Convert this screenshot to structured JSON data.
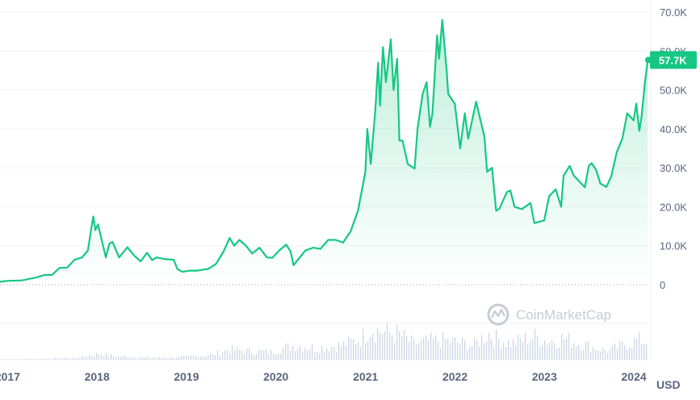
{
  "chart_data": {
    "type": "area",
    "currency": "USD",
    "watermark": "CoinMarketCap",
    "current_value_label": "57.7K",
    "current_value": 57700,
    "ylim": [
      0,
      70000
    ],
    "yticks": [
      0,
      10000,
      20000,
      30000,
      40000,
      50000,
      60000,
      70000
    ],
    "ytick_labels": [
      "0",
      "10.0K",
      "20.0K",
      "30.0K",
      "40.0K",
      "50.0K",
      "60.0K",
      "70.0K"
    ],
    "xlim": [
      "2016-12-01",
      "2024-02-29"
    ],
    "xtick_labels": [
      "2017",
      "2018",
      "2019",
      "2020",
      "2021",
      "2022",
      "2023",
      "2024"
    ],
    "xtick_dates": [
      "2017-01-01",
      "2018-01-01",
      "2019-01-01",
      "2020-01-01",
      "2021-01-01",
      "2022-01-01",
      "2023-01-01",
      "2024-01-01"
    ],
    "colors": {
      "line": "#16c784",
      "fill_top": "#16c784",
      "volume": "#cfd6e4",
      "badge": "#16c784",
      "grid": "#eff2f5",
      "text": "#58667e"
    },
    "price_series": [
      [
        "2016-12-01",
        750
      ],
      [
        "2017-01-01",
        970
      ],
      [
        "2017-03-01",
        1100
      ],
      [
        "2017-05-01",
        1900
      ],
      [
        "2017-06-01",
        2500
      ],
      [
        "2017-07-01",
        2500
      ],
      [
        "2017-08-01",
        4300
      ],
      [
        "2017-09-01",
        4400
      ],
      [
        "2017-10-01",
        6400
      ],
      [
        "2017-11-01",
        7000
      ],
      [
        "2017-11-25",
        8800
      ],
      [
        "2017-12-10",
        15000
      ],
      [
        "2017-12-17",
        17500
      ],
      [
        "2017-12-25",
        14000
      ],
      [
        "2018-01-05",
        15500
      ],
      [
        "2018-01-20",
        11500
      ],
      [
        "2018-02-06",
        7000
      ],
      [
        "2018-02-20",
        10500
      ],
      [
        "2018-03-05",
        11000
      ],
      [
        "2018-04-01",
        7000
      ],
      [
        "2018-05-05",
        9600
      ],
      [
        "2018-06-01",
        7500
      ],
      [
        "2018-06-28",
        6000
      ],
      [
        "2018-07-24",
        8200
      ],
      [
        "2018-08-14",
        6300
      ],
      [
        "2018-09-01",
        7000
      ],
      [
        "2018-10-01",
        6600
      ],
      [
        "2018-11-10",
        6400
      ],
      [
        "2018-11-25",
        4000
      ],
      [
        "2018-12-15",
        3300
      ],
      [
        "2019-01-15",
        3600
      ],
      [
        "2019-02-15",
        3600
      ],
      [
        "2019-04-01",
        4100
      ],
      [
        "2019-05-01",
        5300
      ],
      [
        "2019-06-01",
        8500
      ],
      [
        "2019-06-26",
        12000
      ],
      [
        "2019-07-15",
        10000
      ],
      [
        "2019-08-05",
        11500
      ],
      [
        "2019-09-01",
        10000
      ],
      [
        "2019-09-26",
        8000
      ],
      [
        "2019-10-26",
        9500
      ],
      [
        "2019-11-25",
        7000
      ],
      [
        "2019-12-17",
        6900
      ],
      [
        "2020-01-15",
        8800
      ],
      [
        "2020-02-12",
        10300
      ],
      [
        "2020-03-01",
        8500
      ],
      [
        "2020-03-13",
        5000
      ],
      [
        "2020-04-01",
        6500
      ],
      [
        "2020-05-01",
        8800
      ],
      [
        "2020-06-01",
        9500
      ],
      [
        "2020-07-01",
        9200
      ],
      [
        "2020-08-01",
        11500
      ],
      [
        "2020-09-01",
        11500
      ],
      [
        "2020-10-01",
        10800
      ],
      [
        "2020-11-01",
        13700
      ],
      [
        "2020-12-01",
        19000
      ],
      [
        "2020-12-31",
        29000
      ],
      [
        "2021-01-08",
        40000
      ],
      [
        "2021-01-22",
        31000
      ],
      [
        "2021-02-10",
        45000
      ],
      [
        "2021-02-21",
        57000
      ],
      [
        "2021-03-01",
        46000
      ],
      [
        "2021-03-13",
        61000
      ],
      [
        "2021-03-25",
        52000
      ],
      [
        "2021-04-14",
        63000
      ],
      [
        "2021-04-25",
        50000
      ],
      [
        "2021-05-10",
        58000
      ],
      [
        "2021-05-19",
        37000
      ],
      [
        "2021-06-01",
        37000
      ],
      [
        "2021-06-22",
        31000
      ],
      [
        "2021-07-20",
        29800
      ],
      [
        "2021-08-01",
        40000
      ],
      [
        "2021-08-22",
        49000
      ],
      [
        "2021-09-07",
        52000
      ],
      [
        "2021-09-21",
        40500
      ],
      [
        "2021-10-01",
        44000
      ],
      [
        "2021-10-20",
        64000
      ],
      [
        "2021-10-28",
        58000
      ],
      [
        "2021-11-10",
        68000
      ],
      [
        "2021-11-28",
        55000
      ],
      [
        "2021-12-04",
        49000
      ],
      [
        "2021-12-31",
        46500
      ],
      [
        "2022-01-22",
        35000
      ],
      [
        "2022-02-10",
        44000
      ],
      [
        "2022-02-24",
        37500
      ],
      [
        "2022-03-28",
        47000
      ],
      [
        "2022-05-01",
        38000
      ],
      [
        "2022-05-12",
        29000
      ],
      [
        "2022-06-01",
        30000
      ],
      [
        "2022-06-18",
        19000
      ],
      [
        "2022-07-01",
        19500
      ],
      [
        "2022-08-01",
        23800
      ],
      [
        "2022-08-15",
        24200
      ],
      [
        "2022-09-01",
        20000
      ],
      [
        "2022-10-01",
        19400
      ],
      [
        "2022-11-05",
        21000
      ],
      [
        "2022-11-21",
        15800
      ],
      [
        "2022-12-31",
        16500
      ],
      [
        "2023-01-20",
        22700
      ],
      [
        "2023-02-16",
        24500
      ],
      [
        "2023-03-10",
        20000
      ],
      [
        "2023-03-20",
        28000
      ],
      [
        "2023-04-14",
        30500
      ],
      [
        "2023-05-01",
        28000
      ],
      [
        "2023-06-15",
        25000
      ],
      [
        "2023-07-01",
        30500
      ],
      [
        "2023-07-13",
        31200
      ],
      [
        "2023-08-01",
        29300
      ],
      [
        "2023-08-17",
        26000
      ],
      [
        "2023-09-11",
        25100
      ],
      [
        "2023-10-01",
        27900
      ],
      [
        "2023-10-23",
        34000
      ],
      [
        "2023-11-15",
        37500
      ],
      [
        "2023-12-05",
        44000
      ],
      [
        "2023-12-31",
        42200
      ],
      [
        "2024-01-11",
        46500
      ],
      [
        "2024-01-23",
        39500
      ],
      [
        "2024-02-01",
        43000
      ],
      [
        "2024-02-15",
        52000
      ],
      [
        "2024-02-27",
        57700
      ]
    ],
    "volume_note": "per-bar trading volume bars shown beneath the price area; relative scale 0-1",
    "volume_series": [
      [
        "2017-03",
        0.02
      ],
      [
        "2017-07",
        0.03
      ],
      [
        "2017-10",
        0.05
      ],
      [
        "2017-12",
        0.13
      ],
      [
        "2018-01",
        0.16
      ],
      [
        "2018-02",
        0.11
      ],
      [
        "2018-04",
        0.08
      ],
      [
        "2018-07",
        0.06
      ],
      [
        "2018-10",
        0.05
      ],
      [
        "2018-12",
        0.07
      ],
      [
        "2019-04",
        0.12
      ],
      [
        "2019-06",
        0.26
      ],
      [
        "2019-09",
        0.22
      ],
      [
        "2019-12",
        0.2
      ],
      [
        "2020-03",
        0.38
      ],
      [
        "2020-06",
        0.3
      ],
      [
        "2020-09",
        0.36
      ],
      [
        "2020-12",
        0.55
      ],
      [
        "2021-01",
        0.85
      ],
      [
        "2021-02",
        0.75
      ],
      [
        "2021-05",
        0.65
      ],
      [
        "2021-07",
        0.4
      ],
      [
        "2021-09",
        0.48
      ],
      [
        "2021-11",
        0.5
      ],
      [
        "2022-01",
        0.45
      ],
      [
        "2022-03",
        0.36
      ],
      [
        "2022-05",
        0.7
      ],
      [
        "2022-06",
        0.55
      ],
      [
        "2022-08",
        0.42
      ],
      [
        "2022-11",
        0.6
      ],
      [
        "2023-01",
        0.48
      ],
      [
        "2023-03",
        0.55
      ],
      [
        "2023-06",
        0.38
      ],
      [
        "2023-09",
        0.22
      ],
      [
        "2023-11",
        0.38
      ],
      [
        "2024-01",
        0.5
      ],
      [
        "2024-02",
        0.48
      ]
    ]
  }
}
